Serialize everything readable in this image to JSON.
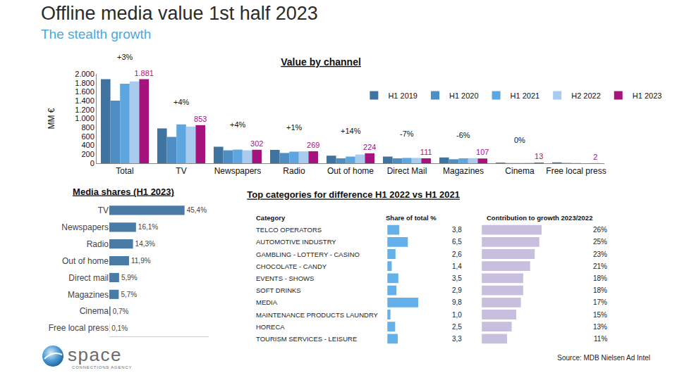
{
  "header": {
    "title": "Offline media value 1st half 2023",
    "subtitle": "The stealth growth"
  },
  "chart_data": [
    {
      "type": "bar",
      "title": "Value by channel",
      "y_label": "MM €",
      "categories": [
        "Total",
        "TV",
        "Newspapers",
        "Radio",
        "Out of home",
        "Direct Mail",
        "Magazines",
        "Cinema",
        "Free local press"
      ],
      "series": [
        {
          "name": "H1 2019",
          "color": "#3f73a0",
          "values": [
            1880,
            780,
            370,
            300,
            170,
            150,
            130,
            15,
            20
          ]
        },
        {
          "name": "H1 2020",
          "color": "#4d8ec4",
          "values": [
            1400,
            590,
            290,
            230,
            110,
            110,
            90,
            5,
            8
          ]
        },
        {
          "name": "H1 2021",
          "color": "#5ea6e0",
          "values": [
            1780,
            870,
            305,
            260,
            150,
            120,
            110,
            5,
            5
          ]
        },
        {
          "name": "H2 2022",
          "color": "#a8cbee",
          "values": [
            1830,
            820,
            290,
            266,
            196,
            119,
            114,
            13,
            2
          ]
        },
        {
          "name": "H1 2023",
          "color": "#a7137c",
          "values": [
            1881,
            853,
            302,
            269,
            224,
            111,
            107,
            13,
            2
          ],
          "data_labels": true,
          "value_labels": [
            "1.881",
            "853",
            "302",
            "269",
            "224",
            "111",
            "107",
            "13",
            "2"
          ]
        }
      ],
      "ylim": [
        0,
        2000
      ],
      "yticks": [
        0,
        200,
        400,
        600,
        800,
        {
          "value": 1000,
          "label": "1.000"
        },
        {
          "value": 1200,
          "label": "1.200"
        },
        {
          "value": 1400,
          "label": "1.400"
        },
        {
          "value": 1600,
          "label": "1.600"
        },
        {
          "value": 1800,
          "label": "1.800"
        },
        {
          "value": 2000,
          "label": "2.000"
        }
      ],
      "grid": false,
      "legend": "upper right",
      "annotations": [
        {
          "category": "Total",
          "text": "+3%"
        },
        {
          "category": "TV",
          "text": "+4%"
        },
        {
          "category": "Newspapers",
          "text": "+4%"
        },
        {
          "category": "Radio",
          "text": "+1%"
        },
        {
          "category": "Out of home",
          "text": "+14%"
        },
        {
          "category": "Direct Mail",
          "text": "-7%"
        },
        {
          "category": "Magazines",
          "text": "-6%"
        },
        {
          "category": "Cinema",
          "text": "0%"
        }
      ]
    },
    {
      "type": "bar",
      "orientation": "horizontal",
      "title": "Media shares (H1 2023)",
      "categories": [
        "TV",
        "Newspapers",
        "Radio",
        "Out of home",
        "Direct mail",
        "Magazines",
        "Cinema",
        "Free local press"
      ],
      "values": [
        45.4,
        16.1,
        14.3,
        11.9,
        5.9,
        5.7,
        0.7,
        0.1
      ],
      "value_labels": [
        "45,4%",
        "16,1%",
        "14,3%",
        "11,9%",
        "5,9%",
        "5,7%",
        "0,7%",
        "0,1%"
      ],
      "color": "#4a7aa6",
      "xlim": [
        0,
        60
      ],
      "data_labels": true,
      "tick_labels": "y",
      "grid": false
    },
    {
      "type": "bar",
      "orientation": "horizontal",
      "title": "Top categories for difference H1 2022 vs H1 2021",
      "category_header": "Category",
      "categories": [
        "TELCO OPERATORS",
        "AUTOMOTIVE INDUSTRY",
        "GAMBLING - LOTTERY - CASINO",
        "CHOCOLATE - CANDY",
        "EVENTS - SHOWS",
        "SOFT DRINKS",
        "MEDIA",
        "MAINTENANCE PRODUCTS LAUNDRY",
        "HORECA",
        "TOURISM SERVICES - LEISURE"
      ],
      "series": [
        {
          "name": "Share of total %",
          "color": "#63b0ea",
          "values": [
            3.8,
            6.5,
            2.6,
            1.4,
            3.5,
            2.9,
            9.8,
            1.0,
            2.5,
            3.3
          ],
          "value_labels": [
            "3,8",
            "6,5",
            "2,6",
            "1,4",
            "3,5",
            "2,9",
            "9,8",
            "1,0",
            "2,5",
            "3,3"
          ],
          "xlim": [
            0,
            24
          ]
        },
        {
          "name": "Contribution to growth 2023/2022",
          "color": "#c6bfdd",
          "values": [
            26,
            25,
            23,
            21,
            18,
            18,
            17,
            15,
            13,
            11
          ],
          "value_labels": [
            "26%",
            "25%",
            "23%",
            "21%",
            "18%",
            "18%",
            "17%",
            "15%",
            "13%",
            "11%"
          ],
          "xlim": [
            0,
            55
          ]
        }
      ],
      "data_labels": true,
      "tick_labels": false,
      "grid": false
    }
  ],
  "footer": {
    "logo": "space",
    "logo_tagline": "CONNECTIONS AGENCY",
    "source": "Source: MDB Nielsen Ad Intel"
  }
}
